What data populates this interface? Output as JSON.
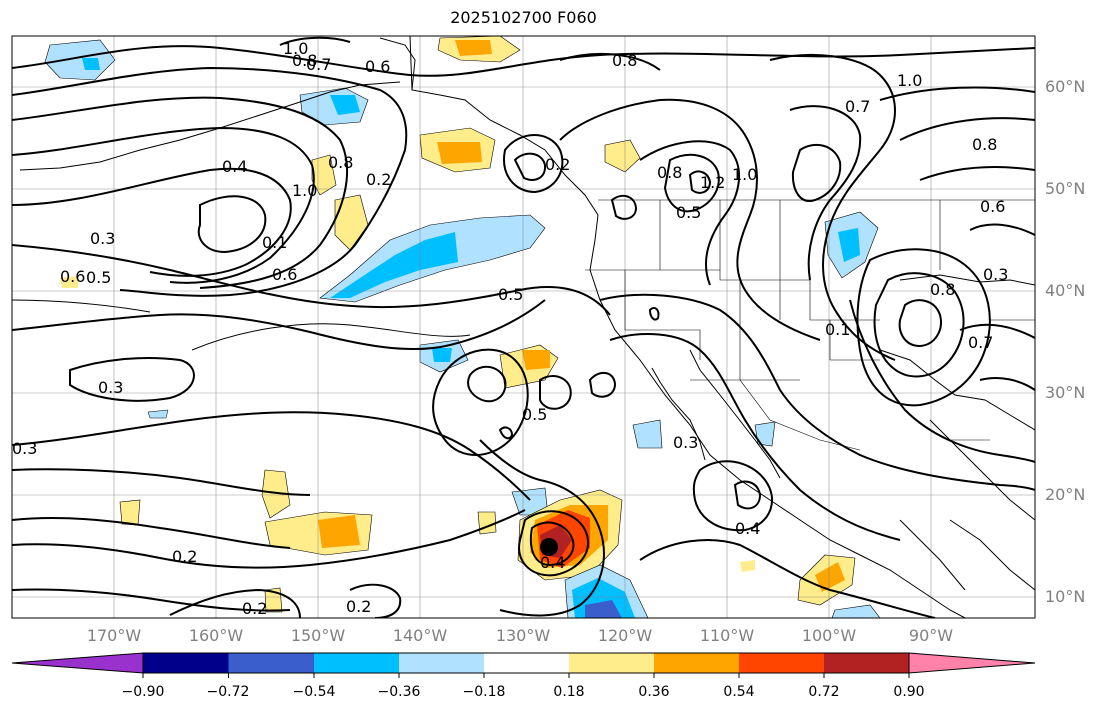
{
  "title": "2025102700 F060",
  "map": {
    "lat_labels": [
      "60°N",
      "50°N",
      "40°N",
      "30°N",
      "20°N",
      "10°N"
    ],
    "lon_labels": [
      "170°W",
      "160°W",
      "150°W",
      "140°W",
      "130°W",
      "120°W",
      "110°W",
      "100°W",
      "90°W"
    ],
    "contour_labels": [
      "1.0",
      "0.8",
      "0.7",
      "0.6",
      "0.8",
      "0.7",
      "1.0",
      "0.4",
      "1.0",
      "0.2",
      "0.8",
      "0.3",
      "0.5",
      "0.6",
      "0.1",
      "0.6",
      "0.2",
      "1.2",
      "1.0",
      "0.8",
      "0.5",
      "0.6",
      "0.8",
      "0.3",
      "0.5",
      "0.3",
      "0.5",
      "0.3",
      "0.3",
      "0.4",
      "0.4",
      "0.2",
      "0.2",
      "0.2",
      "0.7",
      "0.8",
      "0.1"
    ],
    "colors": {
      "coast": "#000000",
      "contour": "#000000",
      "grid": "#808080"
    }
  },
  "colorbar": {
    "ticks": [
      "−0.90",
      "−0.72",
      "−0.54",
      "−0.36",
      "−0.18",
      "0.18",
      "0.36",
      "0.54",
      "0.72",
      "0.90"
    ],
    "colors": [
      "#9932CC",
      "#00008B",
      "#3A5FCD",
      "#00BFFF",
      "#B0E2FF",
      "#FFFFFF",
      "#FFEC8B",
      "#FFA500",
      "#FF4500",
      "#B22222",
      "#FF82AB"
    ]
  }
}
